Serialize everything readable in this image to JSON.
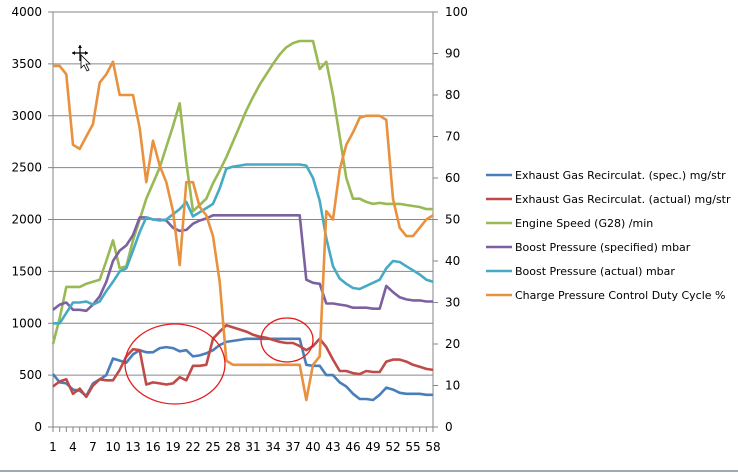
{
  "chart_data": {
    "type": "line",
    "title": "",
    "xlabel": "",
    "ylabel": "",
    "y2label": "",
    "ylim": [
      0,
      4000
    ],
    "y2lim": [
      0,
      100
    ],
    "y_ticks": [
      "0",
      "500",
      "1000",
      "1500",
      "2000",
      "2500",
      "3000",
      "3500",
      "4000"
    ],
    "y2_ticks": [
      "0",
      "10",
      "20",
      "30",
      "40",
      "50",
      "60",
      "70",
      "80",
      "90",
      "100"
    ],
    "x": [
      1,
      2,
      3,
      4,
      5,
      6,
      7,
      8,
      9,
      10,
      11,
      12,
      13,
      14,
      15,
      16,
      17,
      18,
      19,
      20,
      21,
      22,
      23,
      24,
      25,
      26,
      27,
      28,
      29,
      30,
      31,
      32,
      33,
      34,
      35,
      36,
      37,
      38,
      39,
      40,
      41,
      42,
      43,
      44,
      45,
      46,
      47,
      48,
      49,
      50,
      51,
      52,
      53,
      54,
      55,
      56,
      57,
      58
    ],
    "x_tick_labels": [
      "1",
      "4",
      "7",
      "10",
      "13",
      "16",
      "19",
      "22",
      "25",
      "28",
      "31",
      "34",
      "37",
      "40",
      "43",
      "46",
      "49",
      "52",
      "55",
      "58"
    ],
    "grid": "horizontal",
    "legend_position": "right",
    "series": [
      {
        "name": "Exhaust Gas Recirculat. (spec.)  mg/str",
        "axis": "left",
        "color": "#4a7ebb",
        "values": [
          510,
          430,
          420,
          360,
          350,
          300,
          420,
          460,
          500,
          660,
          640,
          620,
          700,
          740,
          720,
          720,
          760,
          770,
          760,
          730,
          740,
          680,
          690,
          710,
          740,
          790,
          820,
          830,
          840,
          850,
          850,
          850,
          850,
          850,
          850,
          850,
          850,
          850,
          600,
          590,
          590,
          500,
          500,
          430,
          390,
          320,
          270,
          270,
          260,
          310,
          380,
          360,
          330,
          320,
          320,
          320,
          310,
          310
        ]
      },
      {
        "name": "Exhaust Gas Recirculat. (actual)  mg/str",
        "axis": "left",
        "color": "#be4b48",
        "values": [
          390,
          440,
          460,
          320,
          370,
          290,
          400,
          460,
          450,
          450,
          550,
          680,
          750,
          740,
          410,
          430,
          420,
          410,
          420,
          480,
          450,
          590,
          590,
          600,
          850,
          920,
          980,
          960,
          940,
          920,
          890,
          870,
          860,
          840,
          820,
          810,
          810,
          780,
          740,
          780,
          850,
          770,
          650,
          540,
          540,
          520,
          510,
          540,
          530,
          530,
          630,
          650,
          650,
          630,
          600,
          580,
          560,
          550
        ]
      },
      {
        "name": "Engine Speed (G28)  /min",
        "axis": "left",
        "color": "#98b954",
        "values": [
          800,
          1050,
          1350,
          1350,
          1350,
          1380,
          1400,
          1420,
          1600,
          1800,
          1530,
          1550,
          1800,
          2000,
          2200,
          2350,
          2500,
          2700,
          2900,
          3120,
          2550,
          2080,
          2140,
          2200,
          2350,
          2470,
          2600,
          2750,
          2900,
          3050,
          3180,
          3300,
          3400,
          3500,
          3590,
          3660,
          3700,
          3720,
          3720,
          3720,
          3450,
          3520,
          3200,
          2800,
          2400,
          2200,
          2200,
          2170,
          2150,
          2160,
          2150,
          2150,
          2150,
          2140,
          2130,
          2120,
          2100,
          2100
        ]
      },
      {
        "name": "Boost Pressure (specified)  mbar",
        "axis": "left",
        "color": "#7d60a0",
        "values": [
          1130,
          1180,
          1200,
          1130,
          1130,
          1120,
          1180,
          1260,
          1400,
          1600,
          1700,
          1750,
          1850,
          2020,
          2020,
          2000,
          2000,
          1990,
          1920,
          1890,
          1900,
          1960,
          1990,
          2010,
          2040,
          2040,
          2040,
          2040,
          2040,
          2040,
          2040,
          2040,
          2040,
          2040,
          2040,
          2040,
          2040,
          2040,
          1420,
          1390,
          1380,
          1190,
          1190,
          1180,
          1170,
          1150,
          1150,
          1150,
          1140,
          1140,
          1360,
          1300,
          1250,
          1230,
          1220,
          1220,
          1210,
          1210
        ]
      },
      {
        "name": "Boost Pressure (actual)  mbar",
        "axis": "left",
        "color": "#46aac5",
        "values": [
          1000,
          1000,
          1100,
          1200,
          1200,
          1210,
          1180,
          1210,
          1310,
          1400,
          1500,
          1530,
          1700,
          1880,
          2020,
          2000,
          1990,
          2000,
          2050,
          2100,
          2170,
          2030,
          2070,
          2110,
          2150,
          2300,
          2490,
          2510,
          2520,
          2530,
          2530,
          2530,
          2530,
          2530,
          2530,
          2530,
          2530,
          2530,
          2520,
          2400,
          2180,
          1820,
          1550,
          1430,
          1380,
          1340,
          1330,
          1360,
          1390,
          1420,
          1530,
          1600,
          1590,
          1550,
          1510,
          1470,
          1420,
          1400
        ]
      },
      {
        "name": "Charge Pressure Control Duty Cycle  %",
        "axis": "right",
        "color": "#e8913e",
        "values": [
          87,
          87,
          85,
          68,
          67,
          70,
          73,
          83,
          85,
          88,
          80,
          80,
          80,
          72,
          59,
          69,
          63,
          59,
          52,
          39,
          59,
          59,
          53,
          51,
          46,
          35,
          16,
          15,
          15,
          15,
          15,
          15,
          15,
          15,
          15,
          15,
          15,
          15,
          6.5,
          15,
          17,
          52,
          50,
          62,
          68,
          71,
          74.5,
          75,
          75,
          75,
          74,
          55,
          48,
          46,
          46,
          48,
          50,
          51
        ]
      }
    ]
  }
}
